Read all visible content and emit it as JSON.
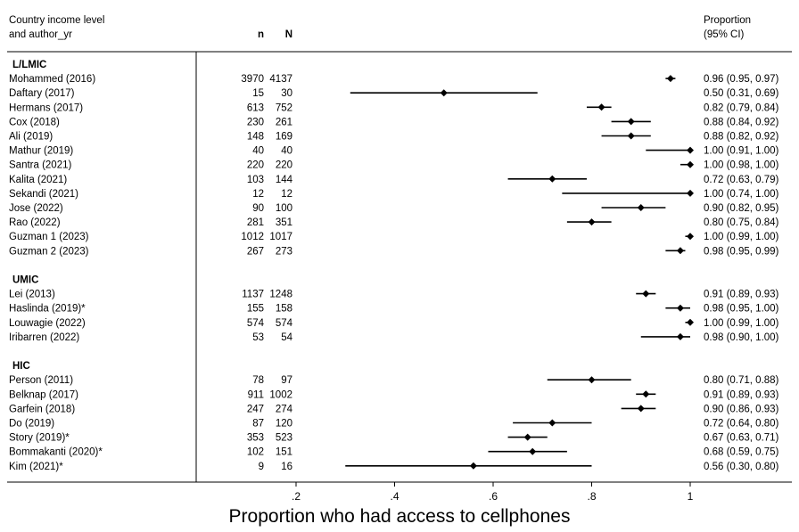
{
  "headers": {
    "study_line1": "Country income level",
    "study_line2": "and author_yr",
    "n": "n",
    "N": "N",
    "prop_line1": "Proportion",
    "prop_line2": "(95% CI)"
  },
  "chart_data": {
    "type": "forest",
    "title": "",
    "xlabel": "Proportion who had access to cellphones",
    "xlim": [
      0.09,
      1.06
    ],
    "xticks": [
      {
        "value": 0.2,
        "label": ".2"
      },
      {
        "value": 0.4,
        "label": ".4"
      },
      {
        "value": 0.6,
        "label": ".6"
      },
      {
        "value": 0.8,
        "label": ".8"
      },
      {
        "value": 1.0,
        "label": "1"
      }
    ],
    "groups": [
      {
        "name": "L/LMIC",
        "studies": [
          {
            "label": "Mohammed (2016)",
            "n": "3970",
            "N": "4137",
            "estimate": 0.96,
            "lower": 0.95,
            "upper": 0.97,
            "ci_text": "0.96 (0.95, 0.97)"
          },
          {
            "label": "Daftary (2017)",
            "n": "15",
            "N": "30",
            "estimate": 0.5,
            "lower": 0.31,
            "upper": 0.69,
            "ci_text": "0.50 (0.31, 0.69)"
          },
          {
            "label": "Hermans (2017)",
            "n": "613",
            "N": "752",
            "estimate": 0.82,
            "lower": 0.79,
            "upper": 0.84,
            "ci_text": "0.82 (0.79, 0.84)"
          },
          {
            "label": "Cox (2018)",
            "n": "230",
            "N": "261",
            "estimate": 0.88,
            "lower": 0.84,
            "upper": 0.92,
            "ci_text": "0.88 (0.84, 0.92)"
          },
          {
            "label": "Ali (2019)",
            "n": "148",
            "N": "169",
            "estimate": 0.88,
            "lower": 0.82,
            "upper": 0.92,
            "ci_text": "0.88 (0.82, 0.92)"
          },
          {
            "label": "Mathur (2019)",
            "n": "40",
            "N": "40",
            "estimate": 1.0,
            "lower": 0.91,
            "upper": 1.0,
            "ci_text": "1.00 (0.91, 1.00)"
          },
          {
            "label": "Santra (2021)",
            "n": "220",
            "N": "220",
            "estimate": 1.0,
            "lower": 0.98,
            "upper": 1.0,
            "ci_text": "1.00 (0.98, 1.00)"
          },
          {
            "label": "Kalita (2021)",
            "n": "103",
            "N": "144",
            "estimate": 0.72,
            "lower": 0.63,
            "upper": 0.79,
            "ci_text": "0.72 (0.63, 0.79)"
          },
          {
            "label": "Sekandi (2021)",
            "n": "12",
            "N": "12",
            "estimate": 1.0,
            "lower": 0.74,
            "upper": 1.0,
            "ci_text": "1.00 (0.74, 1.00)"
          },
          {
            "label": "Jose (2022)",
            "n": "90",
            "N": "100",
            "estimate": 0.9,
            "lower": 0.82,
            "upper": 0.95,
            "ci_text": "0.90 (0.82, 0.95)"
          },
          {
            "label": "Rao (2022)",
            "n": "281",
            "N": "351",
            "estimate": 0.8,
            "lower": 0.75,
            "upper": 0.84,
            "ci_text": "0.80 (0.75, 0.84)"
          },
          {
            "label": "Guzman 1 (2023)",
            "n": "1012",
            "N": "1017",
            "estimate": 1.0,
            "lower": 0.99,
            "upper": 1.0,
            "ci_text": "1.00 (0.99, 1.00)"
          },
          {
            "label": "Guzman 2 (2023)",
            "n": "267",
            "N": "273",
            "estimate": 0.98,
            "lower": 0.95,
            "upper": 0.99,
            "ci_text": "0.98 (0.95, 0.99)"
          }
        ]
      },
      {
        "name": "UMIC",
        "studies": [
          {
            "label": "Lei (2013)",
            "n": "1137",
            "N": "1248",
            "estimate": 0.91,
            "lower": 0.89,
            "upper": 0.93,
            "ci_text": "0.91 (0.89, 0.93)"
          },
          {
            "label": "Haslinda (2019)*",
            "n": "155",
            "N": "158",
            "estimate": 0.98,
            "lower": 0.95,
            "upper": 1.0,
            "ci_text": "0.98 (0.95, 1.00)"
          },
          {
            "label": "Louwagie (2022)",
            "n": "574",
            "N": "574",
            "estimate": 1.0,
            "lower": 0.99,
            "upper": 1.0,
            "ci_text": "1.00 (0.99, 1.00)"
          },
          {
            "label": "Iribarren (2022)",
            "n": "53",
            "N": "54",
            "estimate": 0.98,
            "lower": 0.9,
            "upper": 1.0,
            "ci_text": "0.98 (0.90, 1.00)"
          }
        ]
      },
      {
        "name": "HIC",
        "studies": [
          {
            "label": "Person (2011)",
            "n": "78",
            "N": "97",
            "estimate": 0.8,
            "lower": 0.71,
            "upper": 0.88,
            "ci_text": "0.80 (0.71, 0.88)"
          },
          {
            "label": "Belknap (2017)",
            "n": "911",
            "N": "1002",
            "estimate": 0.91,
            "lower": 0.89,
            "upper": 0.93,
            "ci_text": "0.91 (0.89, 0.93)"
          },
          {
            "label": "Garfein (2018)",
            "n": "247",
            "N": "274",
            "estimate": 0.9,
            "lower": 0.86,
            "upper": 0.93,
            "ci_text": "0.90 (0.86, 0.93)"
          },
          {
            "label": "Do (2019)",
            "n": "87",
            "N": "120",
            "estimate": 0.72,
            "lower": 0.64,
            "upper": 0.8,
            "ci_text": "0.72 (0.64, 0.80)"
          },
          {
            "label": "Story (2019)*",
            "n": "353",
            "N": "523",
            "estimate": 0.67,
            "lower": 0.63,
            "upper": 0.71,
            "ci_text": "0.67 (0.63, 0.71)"
          },
          {
            "label": "Bommakanti (2020)*",
            "n": "102",
            "N": "151",
            "estimate": 0.68,
            "lower": 0.59,
            "upper": 0.75,
            "ci_text": "0.68 (0.59, 0.75)"
          },
          {
            "label": "Kim (2021)*",
            "n": "9",
            "N": "16",
            "estimate": 0.56,
            "lower": 0.3,
            "upper": 0.8,
            "ci_text": "0.56 (0.30, 0.80)"
          }
        ]
      }
    ]
  }
}
